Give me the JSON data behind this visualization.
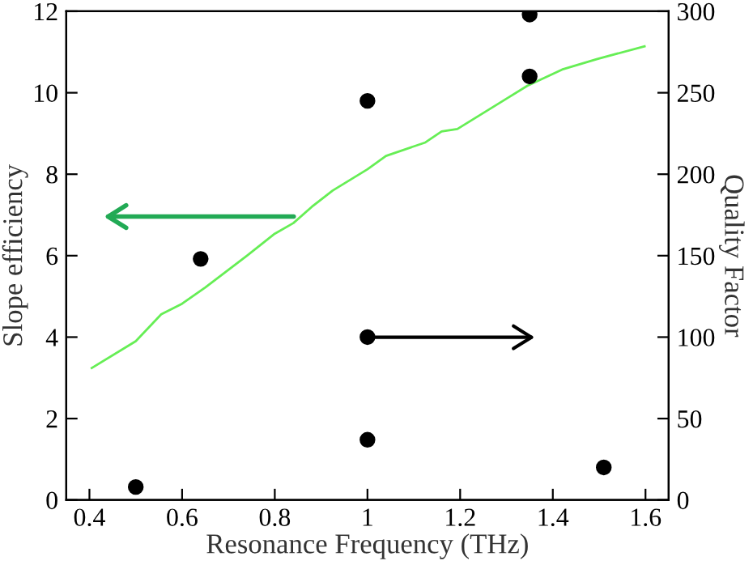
{
  "chart_data": {
    "type": "line",
    "xlabel": "Resonance Frequency (THz)",
    "ylabel": "Slope efficiency",
    "y2label": "Quality Factor",
    "xlim": [
      0.35,
      1.65
    ],
    "xticks": [
      0.4,
      0.6,
      0.8,
      1,
      1.2,
      1.4,
      1.6
    ],
    "ylim": [
      0,
      12
    ],
    "yticks": [
      0,
      2,
      4,
      6,
      8,
      10,
      12
    ],
    "y2lim": [
      0,
      300
    ],
    "y2ticks": [
      0,
      50,
      100,
      150,
      200,
      250,
      300
    ],
    "grid": false,
    "legend": false,
    "series": [
      {
        "color": "#66ee55",
        "x": [
          0.405,
          0.5,
          0.555,
          0.6,
          0.65,
          0.74,
          0.8,
          0.84,
          0.88,
          0.925,
          1.0,
          1.04,
          1.125,
          1.16,
          1.194,
          1.298,
          1.345,
          1.42,
          1.496,
          1.598
        ],
        "values": [
          3.24,
          3.9,
          4.56,
          4.82,
          5.22,
          6.0,
          6.54,
          6.8,
          7.2,
          7.6,
          8.12,
          8.45,
          8.78,
          9.05,
          9.11,
          9.84,
          10.17,
          10.57,
          10.83,
          11.14
        ]
      },
      {
        "type": "scatter",
        "axis": "y2",
        "color": "#000000",
        "marker": "circle",
        "x": [
          0.5,
          0.64,
          1.0,
          1.0,
          1.0,
          1.35,
          1.35,
          1.51
        ],
        "values": [
          8,
          148,
          245,
          100,
          37,
          298,
          260,
          20
        ]
      }
    ]
  }
}
